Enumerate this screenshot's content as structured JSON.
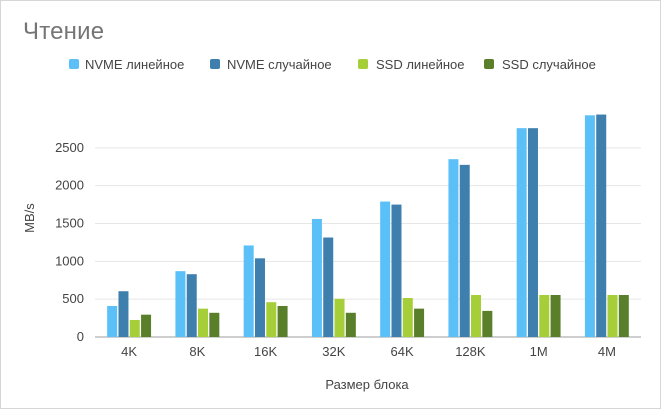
{
  "chart_data": {
    "type": "bar",
    "title": "Чтение",
    "xlabel": "Размер блока",
    "ylabel": "MB/s",
    "ylim": [
      0,
      3000
    ],
    "yticks": [
      0,
      500,
      1000,
      1500,
      2000,
      2500
    ],
    "grid": true,
    "legend_position": "top",
    "categories": [
      "4K",
      "8K",
      "16K",
      "32K",
      "64K",
      "128K",
      "1M",
      "4M"
    ],
    "series": [
      {
        "name": "NVME линейное",
        "color": "#5bc0f8",
        "values": [
          410,
          870,
          1210,
          1560,
          1790,
          2350,
          2760,
          2930
        ]
      },
      {
        "name": "NVME случайное",
        "color": "#3f7fae",
        "values": [
          605,
          830,
          1040,
          1315,
          1750,
          2275,
          2760,
          2940
        ]
      },
      {
        "name": "SSD линейное",
        "color": "#a6ce39",
        "values": [
          225,
          375,
          460,
          505,
          515,
          555,
          555,
          555
        ]
      },
      {
        "name": "SSD случайное",
        "color": "#5a7f2a",
        "values": [
          295,
          320,
          410,
          320,
          375,
          345,
          555,
          555
        ]
      }
    ]
  }
}
